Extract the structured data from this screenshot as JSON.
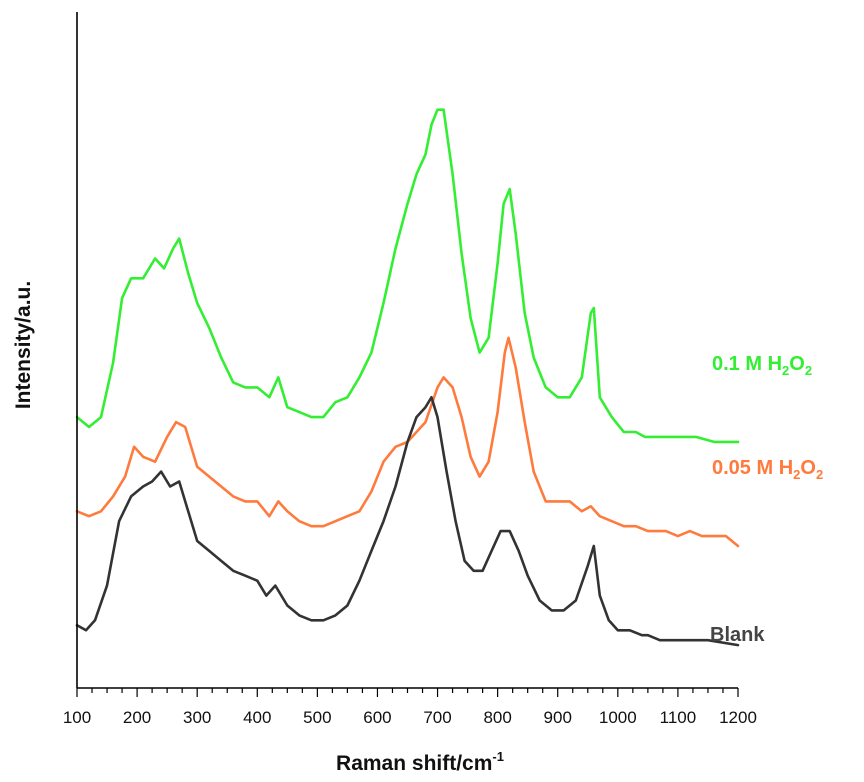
{
  "chart_data": {
    "type": "line",
    "xlabel": "Raman shift/cm",
    "xlabel_sup": "-1",
    "ylabel": "Intensity/a.u.",
    "xlim": [
      100,
      1200
    ],
    "x_ticks": [
      100,
      200,
      300,
      400,
      500,
      600,
      700,
      800,
      900,
      1000,
      1100,
      1200
    ],
    "x_minor_step": 25,
    "y_ticks_shown": false,
    "grid": false,
    "legend": "inline labels at right end of each trace",
    "stacked_offsets": true,
    "series": [
      {
        "name": "0.1 M H2O2",
        "label_main": "0.1 M H",
        "label_sub1": "2",
        "label_mid": "O",
        "label_sub2": "2",
        "color": "#33ee33",
        "points": [
          [
            100,
            0.44
          ],
          [
            120,
            0.42
          ],
          [
            140,
            0.44
          ],
          [
            160,
            0.55
          ],
          [
            175,
            0.68
          ],
          [
            190,
            0.72
          ],
          [
            210,
            0.72
          ],
          [
            230,
            0.76
          ],
          [
            245,
            0.74
          ],
          [
            260,
            0.78
          ],
          [
            270,
            0.8
          ],
          [
            285,
            0.73
          ],
          [
            300,
            0.67
          ],
          [
            320,
            0.62
          ],
          [
            340,
            0.56
          ],
          [
            360,
            0.51
          ],
          [
            380,
            0.5
          ],
          [
            400,
            0.5
          ],
          [
            420,
            0.48
          ],
          [
            435,
            0.52
          ],
          [
            450,
            0.46
          ],
          [
            470,
            0.45
          ],
          [
            490,
            0.44
          ],
          [
            510,
            0.44
          ],
          [
            530,
            0.47
          ],
          [
            550,
            0.48
          ],
          [
            570,
            0.52
          ],
          [
            590,
            0.57
          ],
          [
            610,
            0.67
          ],
          [
            630,
            0.78
          ],
          [
            650,
            0.87
          ],
          [
            665,
            0.93
          ],
          [
            680,
            0.97
          ],
          [
            690,
            1.03
          ],
          [
            700,
            1.06
          ],
          [
            710,
            1.06
          ],
          [
            725,
            0.93
          ],
          [
            740,
            0.77
          ],
          [
            755,
            0.64
          ],
          [
            770,
            0.57
          ],
          [
            785,
            0.6
          ],
          [
            800,
            0.75
          ],
          [
            810,
            0.87
          ],
          [
            820,
            0.9
          ],
          [
            830,
            0.81
          ],
          [
            845,
            0.65
          ],
          [
            860,
            0.56
          ],
          [
            880,
            0.5
          ],
          [
            900,
            0.48
          ],
          [
            920,
            0.48
          ],
          [
            940,
            0.52
          ],
          [
            955,
            0.65
          ],
          [
            960,
            0.66
          ],
          [
            970,
            0.48
          ],
          [
            990,
            0.44
          ],
          [
            1010,
            0.41
          ],
          [
            1030,
            0.41
          ],
          [
            1045,
            0.4
          ],
          [
            1070,
            0.4
          ],
          [
            1100,
            0.4
          ],
          [
            1130,
            0.4
          ],
          [
            1160,
            0.39
          ],
          [
            1200,
            0.39
          ]
        ]
      },
      {
        "name": "0.05 M H2O2",
        "label_main": "0.05 M H",
        "label_sub1": "2",
        "label_mid": "O",
        "label_sub2": "2",
        "color": "#ff7a3d",
        "points": [
          [
            100,
            0.25
          ],
          [
            120,
            0.24
          ],
          [
            140,
            0.25
          ],
          [
            160,
            0.28
          ],
          [
            180,
            0.32
          ],
          [
            195,
            0.38
          ],
          [
            210,
            0.36
          ],
          [
            230,
            0.35
          ],
          [
            250,
            0.4
          ],
          [
            265,
            0.43
          ],
          [
            280,
            0.42
          ],
          [
            300,
            0.34
          ],
          [
            320,
            0.32
          ],
          [
            340,
            0.3
          ],
          [
            360,
            0.28
          ],
          [
            380,
            0.27
          ],
          [
            400,
            0.27
          ],
          [
            420,
            0.24
          ],
          [
            435,
            0.27
          ],
          [
            450,
            0.25
          ],
          [
            470,
            0.23
          ],
          [
            490,
            0.22
          ],
          [
            510,
            0.22
          ],
          [
            530,
            0.23
          ],
          [
            550,
            0.24
          ],
          [
            570,
            0.25
          ],
          [
            590,
            0.29
          ],
          [
            610,
            0.35
          ],
          [
            630,
            0.38
          ],
          [
            650,
            0.39
          ],
          [
            665,
            0.41
          ],
          [
            680,
            0.43
          ],
          [
            700,
            0.5
          ],
          [
            710,
            0.52
          ],
          [
            725,
            0.5
          ],
          [
            740,
            0.44
          ],
          [
            755,
            0.36
          ],
          [
            770,
            0.32
          ],
          [
            785,
            0.35
          ],
          [
            800,
            0.45
          ],
          [
            812,
            0.57
          ],
          [
            818,
            0.6
          ],
          [
            830,
            0.54
          ],
          [
            845,
            0.43
          ],
          [
            860,
            0.33
          ],
          [
            880,
            0.27
          ],
          [
            900,
            0.27
          ],
          [
            920,
            0.27
          ],
          [
            940,
            0.25
          ],
          [
            955,
            0.26
          ],
          [
            970,
            0.24
          ],
          [
            990,
            0.23
          ],
          [
            1010,
            0.22
          ],
          [
            1030,
            0.22
          ],
          [
            1050,
            0.21
          ],
          [
            1080,
            0.21
          ],
          [
            1100,
            0.2
          ],
          [
            1120,
            0.21
          ],
          [
            1140,
            0.2
          ],
          [
            1160,
            0.2
          ],
          [
            1180,
            0.2
          ],
          [
            1200,
            0.18
          ]
        ]
      },
      {
        "name": "Blank",
        "label_main": "Blank",
        "color": "#333333",
        "points": [
          [
            100,
            0.02
          ],
          [
            115,
            0.01
          ],
          [
            130,
            0.03
          ],
          [
            150,
            0.1
          ],
          [
            170,
            0.23
          ],
          [
            190,
            0.28
          ],
          [
            210,
            0.3
          ],
          [
            225,
            0.31
          ],
          [
            240,
            0.33
          ],
          [
            255,
            0.3
          ],
          [
            270,
            0.31
          ],
          [
            285,
            0.25
          ],
          [
            300,
            0.19
          ],
          [
            320,
            0.17
          ],
          [
            340,
            0.15
          ],
          [
            360,
            0.13
          ],
          [
            380,
            0.12
          ],
          [
            400,
            0.11
          ],
          [
            415,
            0.08
          ],
          [
            430,
            0.1
          ],
          [
            450,
            0.06
          ],
          [
            470,
            0.04
          ],
          [
            490,
            0.03
          ],
          [
            510,
            0.03
          ],
          [
            530,
            0.04
          ],
          [
            550,
            0.06
          ],
          [
            570,
            0.11
          ],
          [
            590,
            0.17
          ],
          [
            610,
            0.23
          ],
          [
            630,
            0.3
          ],
          [
            650,
            0.39
          ],
          [
            665,
            0.44
          ],
          [
            680,
            0.46
          ],
          [
            690,
            0.48
          ],
          [
            700,
            0.44
          ],
          [
            715,
            0.33
          ],
          [
            730,
            0.23
          ],
          [
            745,
            0.15
          ],
          [
            760,
            0.13
          ],
          [
            775,
            0.13
          ],
          [
            790,
            0.17
          ],
          [
            805,
            0.21
          ],
          [
            820,
            0.21
          ],
          [
            835,
            0.17
          ],
          [
            850,
            0.12
          ],
          [
            870,
            0.07
          ],
          [
            890,
            0.05
          ],
          [
            910,
            0.05
          ],
          [
            930,
            0.07
          ],
          [
            950,
            0.14
          ],
          [
            960,
            0.18
          ],
          [
            970,
            0.08
          ],
          [
            985,
            0.03
          ],
          [
            1000,
            0.01
          ],
          [
            1020,
            0.01
          ],
          [
            1040,
            0.0
          ],
          [
            1050,
            0.0
          ],
          [
            1070,
            -0.01
          ],
          [
            1090,
            -0.01
          ],
          [
            1120,
            -0.01
          ],
          [
            1150,
            -0.01
          ],
          [
            1200,
            -0.02
          ]
        ]
      }
    ]
  }
}
